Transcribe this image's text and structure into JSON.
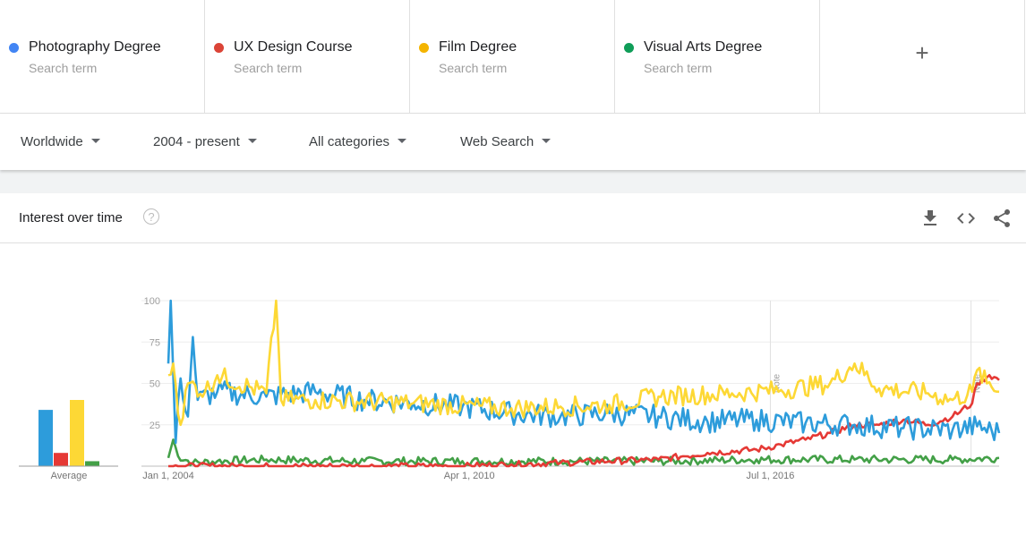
{
  "terms": [
    {
      "label": "Photography Degree",
      "sub": "Search term",
      "color": "#4285f4"
    },
    {
      "label": "UX Design Course",
      "sub": "Search term",
      "color": "#db4437"
    },
    {
      "label": "Film Degree",
      "sub": "Search term",
      "color": "#f4b400"
    },
    {
      "label": "Visual Arts Degree",
      "sub": "Search term",
      "color": "#0f9d58"
    }
  ],
  "add_term_icon": "plus-icon",
  "filters": {
    "region": "Worldwide",
    "time": "2004 - present",
    "category": "All categories",
    "property": "Web Search"
  },
  "card": {
    "title": "Interest over time",
    "help": "?",
    "tools": [
      "download-icon",
      "embed-icon",
      "share-icon"
    ]
  },
  "chart_data": {
    "type": "line",
    "x": [
      "Jan 1, 2004",
      "Apr 1, 2010",
      "Jul 1, 2016"
    ],
    "ylim": [
      0,
      100
    ],
    "yticks": [
      "100",
      "75",
      "50",
      "25"
    ],
    "xticks": [
      "Jan 1, 2004",
      "Apr 1, 2010",
      "Jul 1, 2016"
    ],
    "notes": [
      "Note",
      "Note"
    ],
    "series_colors": {
      "blue": "#2d9cdb",
      "red": "#e53935",
      "yellow": "#fdd835",
      "green": "#43a047"
    },
    "series": [
      {
        "name": "Photography Degree",
        "color": "#2d9cdb",
        "anchors": [
          [
            0,
            62
          ],
          [
            1,
            100
          ],
          [
            3,
            14
          ],
          [
            5,
            53
          ],
          [
            8,
            30
          ],
          [
            10,
            78
          ],
          [
            12,
            40
          ],
          [
            20,
            45
          ],
          [
            40,
            42
          ],
          [
            60,
            45
          ],
          [
            80,
            40
          ],
          [
            100,
            38
          ],
          [
            120,
            36
          ],
          [
            140,
            32
          ],
          [
            160,
            30
          ],
          [
            180,
            32
          ],
          [
            200,
            30
          ],
          [
            220,
            27
          ],
          [
            240,
            28
          ],
          [
            260,
            26
          ],
          [
            280,
            25
          ],
          [
            300,
            23
          ],
          [
            320,
            22
          ],
          [
            330,
            24
          ],
          [
            339,
            20
          ]
        ],
        "noise": 7
      },
      {
        "name": "UX Design Course",
        "color": "#e53935",
        "anchors": [
          [
            0,
            0
          ],
          [
            100,
            0
          ],
          [
            120,
            0
          ],
          [
            140,
            1
          ],
          [
            160,
            2
          ],
          [
            180,
            3
          ],
          [
            200,
            4
          ],
          [
            210,
            6
          ],
          [
            220,
            8
          ],
          [
            240,
            10
          ],
          [
            250,
            13
          ],
          [
            260,
            16
          ],
          [
            270,
            20
          ],
          [
            280,
            25
          ],
          [
            290,
            25
          ],
          [
            300,
            28
          ],
          [
            310,
            25
          ],
          [
            320,
            30
          ],
          [
            328,
            38
          ],
          [
            330,
            50
          ],
          [
            335,
            55
          ],
          [
            339,
            52
          ]
        ],
        "noise": 2
      },
      {
        "name": "Film Degree",
        "color": "#fdd835",
        "anchors": [
          [
            0,
            55
          ],
          [
            2,
            62
          ],
          [
            5,
            25
          ],
          [
            8,
            50
          ],
          [
            15,
            45
          ],
          [
            20,
            55
          ],
          [
            40,
            44
          ],
          [
            44,
            100
          ],
          [
            46,
            40
          ],
          [
            60,
            40
          ],
          [
            100,
            38
          ],
          [
            140,
            35
          ],
          [
            160,
            36
          ],
          [
            180,
            37
          ],
          [
            200,
            42
          ],
          [
            230,
            44
          ],
          [
            250,
            46
          ],
          [
            270,
            50
          ],
          [
            280,
            62
          ],
          [
            290,
            47
          ],
          [
            310,
            44
          ],
          [
            320,
            40
          ],
          [
            328,
            45
          ],
          [
            330,
            58
          ],
          [
            334,
            50
          ],
          [
            339,
            45
          ]
        ],
        "noise": 6
      },
      {
        "name": "Visual Arts Degree",
        "color": "#43a047",
        "anchors": [
          [
            0,
            5
          ],
          [
            2,
            16
          ],
          [
            4,
            6
          ],
          [
            10,
            2
          ],
          [
            20,
            3
          ],
          [
            40,
            4
          ],
          [
            80,
            3
          ],
          [
            120,
            3
          ],
          [
            160,
            3
          ],
          [
            200,
            3
          ],
          [
            240,
            4
          ],
          [
            280,
            4
          ],
          [
            320,
            4
          ],
          [
            339,
            5
          ]
        ],
        "noise": 2.5
      }
    ],
    "averages": [
      34,
      8,
      40,
      3
    ]
  },
  "average_label": "Average"
}
